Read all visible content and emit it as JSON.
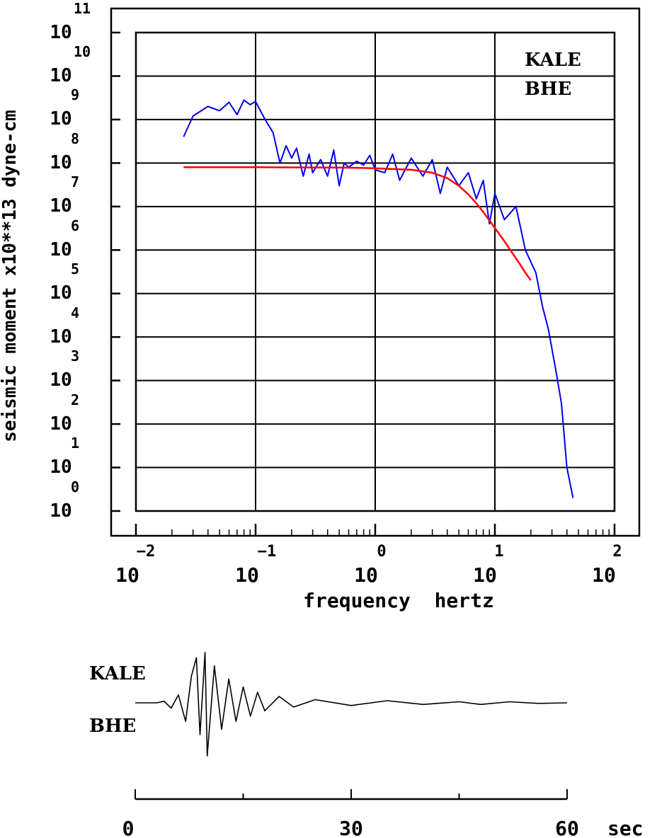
{
  "chart_data": [
    {
      "type": "line",
      "xscale": "log",
      "yscale": "log",
      "xlim": [
        0.01,
        100
      ],
      "ylim": [
        1,
        100000000000
      ],
      "xlabel": "frequency  hertz",
      "ylabel": "seismic moment x10**13 dyne-cm",
      "x_ticks": [
        {
          "base": "10",
          "exp": "−2"
        },
        {
          "base": "10",
          "exp": "−1"
        },
        {
          "base": "10",
          "exp": "0"
        },
        {
          "base": "10",
          "exp": "1"
        },
        {
          "base": "10",
          "exp": "2"
        }
      ],
      "y_ticks": [
        {
          "base": "10",
          "exp": "11"
        },
        {
          "base": "10",
          "exp": "10"
        },
        {
          "base": "10",
          "exp": "9"
        },
        {
          "base": "10",
          "exp": "8"
        },
        {
          "base": "10",
          "exp": "7"
        },
        {
          "base": "10",
          "exp": "6"
        },
        {
          "base": "10",
          "exp": "5"
        },
        {
          "base": "10",
          "exp": "4"
        },
        {
          "base": "10",
          "exp": "3"
        },
        {
          "base": "10",
          "exp": "2"
        },
        {
          "base": "10",
          "exp": "1"
        },
        {
          "base": "10",
          "exp": "0"
        }
      ],
      "grid": true,
      "annotations": [
        "KALE",
        "BHE"
      ],
      "series": [
        {
          "color": "#0000ee",
          "points": [
            [
              0.025,
              400000000.0
            ],
            [
              0.03,
              1200000000.0
            ],
            [
              0.04,
              2000000000.0
            ],
            [
              0.05,
              1600000000.0
            ],
            [
              0.06,
              2500000000.0
            ],
            [
              0.07,
              1300000000.0
            ],
            [
              0.08,
              2800000000.0
            ],
            [
              0.09,
              2200000000.0
            ],
            [
              0.1,
              2600000000.0
            ],
            [
              0.12,
              1000000000.0
            ],
            [
              0.14,
              500000000.0
            ],
            [
              0.16,
              100000000.0
            ],
            [
              0.18,
              250000000.0
            ],
            [
              0.2,
              130000000.0
            ],
            [
              0.22,
              220000000.0
            ],
            [
              0.25,
              50000000.0
            ],
            [
              0.28,
              160000000.0
            ],
            [
              0.3,
              60000000.0
            ],
            [
              0.35,
              120000000.0
            ],
            [
              0.4,
              50000000.0
            ],
            [
              0.45,
              200000000.0
            ],
            [
              0.5,
              30000000.0
            ],
            [
              0.55,
              100000000.0
            ],
            [
              0.6,
              80000000.0
            ],
            [
              0.7,
              110000000.0
            ],
            [
              0.8,
              90000000.0
            ],
            [
              0.9,
              150000000.0
            ],
            [
              1.0,
              70000000.0
            ],
            [
              1.2,
              60000000.0
            ],
            [
              1.4,
              160000000.0
            ],
            [
              1.6,
              40000000.0
            ],
            [
              2.0,
              130000000.0
            ],
            [
              2.5,
              50000000.0
            ],
            [
              3.0,
              120000000.0
            ],
            [
              3.5,
              20000000.0
            ],
            [
              4.0,
              80000000.0
            ],
            [
              5.0,
              30000000.0
            ],
            [
              6.0,
              60000000.0
            ],
            [
              7.0,
              15000000.0
            ],
            [
              8.0,
              40000000.0
            ],
            [
              9.0,
              4000000.0
            ],
            [
              10.0,
              20000000.0
            ],
            [
              12.0,
              5000000.0
            ],
            [
              15.0,
              10000000.0
            ],
            [
              18.0,
              1000000.0
            ],
            [
              22.0,
              300000.0
            ],
            [
              25.0,
              50000.0
            ],
            [
              28.0,
              15000.0
            ],
            [
              32.0,
              2000.0
            ],
            [
              36.0,
              300.0
            ],
            [
              40.0,
              10.0
            ],
            [
              45.0,
              2.0
            ]
          ]
        },
        {
          "color": "#ff0000",
          "points": [
            [
              0.025,
              80000000.0
            ],
            [
              0.1,
              80000000.0
            ],
            [
              0.5,
              79000000.0
            ],
            [
              1.0,
              76000000.0
            ],
            [
              2.0,
              70000000.0
            ],
            [
              3.0,
              60000000.0
            ],
            [
              4.0,
              45000000.0
            ],
            [
              5.0,
              30000000.0
            ],
            [
              6.0,
              19000000.0
            ],
            [
              7.0,
              12000000.0
            ],
            [
              8.0,
              7500000.0
            ],
            [
              9.0,
              4800000.0
            ],
            [
              10.0,
              3200000.0
            ],
            [
              12.0,
              1600000.0
            ],
            [
              14.0,
              850000.0
            ],
            [
              16.0,
              500000.0
            ],
            [
              18.0,
              300000.0
            ],
            [
              20.0,
              200000.0
            ]
          ]
        }
      ]
    },
    {
      "type": "line",
      "xlim": [
        0,
        60
      ],
      "x_ticks": [
        "0",
        "30",
        "60"
      ],
      "x_unit": "sec",
      "annotations": [
        "KALE",
        "BHE"
      ],
      "series": [
        {
          "color": "#000000",
          "points": [
            [
              0,
              0
            ],
            [
              3,
              0
            ],
            [
              4,
              0.03
            ],
            [
              5,
              -0.1
            ],
            [
              6,
              0.15
            ],
            [
              7,
              -0.35
            ],
            [
              7.8,
              0.5
            ],
            [
              8.5,
              0.85
            ],
            [
              9,
              -0.6
            ],
            [
              9.7,
              0.95
            ],
            [
              10,
              -1.0
            ],
            [
              11,
              0.7
            ],
            [
              12,
              -0.5
            ],
            [
              13,
              0.45
            ],
            [
              14,
              -0.35
            ],
            [
              15,
              0.3
            ],
            [
              16,
              -0.25
            ],
            [
              17,
              0.2
            ],
            [
              18,
              -0.15
            ],
            [
              20,
              0.12
            ],
            [
              22,
              -0.08
            ],
            [
              25,
              0.06
            ],
            [
              30,
              -0.05
            ],
            [
              35,
              0.04
            ],
            [
              40,
              -0.03
            ],
            [
              45,
              0.02
            ],
            [
              48,
              -0.03
            ],
            [
              52,
              0.02
            ],
            [
              56,
              -0.01
            ],
            [
              60,
              0
            ]
          ]
        }
      ]
    }
  ]
}
